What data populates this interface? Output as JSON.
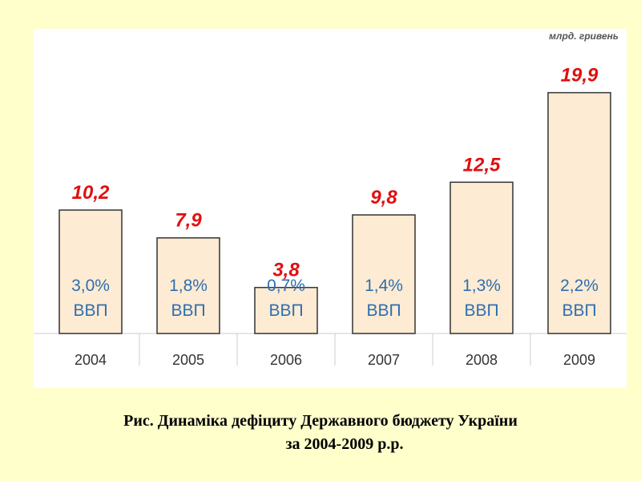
{
  "chart_data": {
    "type": "bar",
    "unit_label": "млрд. гривень",
    "categories": [
      "2004",
      "2005",
      "2006",
      "2007",
      "2008",
      "2009"
    ],
    "values": [
      10.2,
      7.9,
      3.8,
      9.8,
      12.5,
      19.9
    ],
    "value_labels": [
      "10,2",
      "7,9",
      "3,8",
      "9,8",
      "12,5",
      "19,9"
    ],
    "gdp_share_labels": [
      "3,0%",
      "1,8%",
      "0,7%",
      "1,4%",
      "1,3%",
      "2,2%"
    ],
    "gdp_label": "ВВП",
    "ylim": [
      0,
      21
    ],
    "grid": false,
    "colors": {
      "bar_fill": "#fdebd3",
      "bar_stroke": "#333333",
      "value_label": "#e01010",
      "share_label": "#2e6fb0",
      "axis": "#cccccc",
      "tick_label": "#333333"
    }
  },
  "caption": {
    "line1": "Рис.  Динаміка дефіциту Державного бюджету України",
    "line2": "за 2004-2009 р.р."
  }
}
